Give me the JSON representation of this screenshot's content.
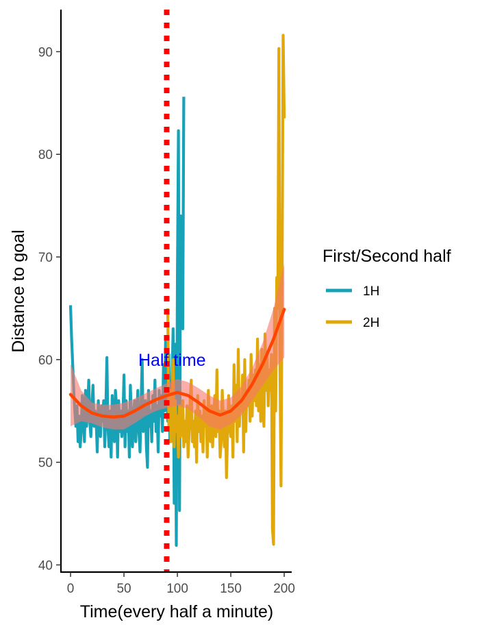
{
  "chart_data": {
    "type": "line",
    "title": "",
    "xlabel": "Time(every half a minute)",
    "ylabel": "Distance to goal",
    "xlim": [
      -9,
      207
    ],
    "ylim": [
      39.3,
      94.1
    ],
    "xticks": [
      0,
      50,
      100,
      150,
      200
    ],
    "yticks": [
      40,
      50,
      60,
      70,
      80,
      90
    ],
    "xtick_labels": [
      "0",
      "50",
      "100",
      "150",
      "200"
    ],
    "ytick_labels": [
      "40",
      "50",
      "60",
      "70",
      "80",
      "90"
    ],
    "grid": false,
    "legend": {
      "title": "First/Second half",
      "position": "right",
      "entries": [
        {
          "label": "1H",
          "color": "#17A2B8"
        },
        {
          "label": "2H",
          "color": "#E0A80A"
        }
      ]
    },
    "series": [
      {
        "name": "1H",
        "color": "#17A2B8",
        "x": [
          0,
          1,
          2,
          3,
          4,
          5,
          6,
          7,
          8,
          9,
          10,
          11,
          12,
          13,
          14,
          15,
          16,
          17,
          18,
          19,
          20,
          21,
          22,
          23,
          24,
          25,
          26,
          27,
          28,
          29,
          30,
          31,
          32,
          33,
          34,
          35,
          36,
          37,
          38,
          39,
          40,
          41,
          42,
          43,
          44,
          45,
          46,
          47,
          48,
          49,
          50,
          51,
          52,
          53,
          54,
          55,
          56,
          57,
          58,
          59,
          60,
          61,
          62,
          63,
          64,
          65,
          66,
          67,
          68,
          69,
          70,
          71,
          72,
          73,
          74,
          75,
          76,
          77,
          78,
          79,
          80,
          81,
          82,
          83,
          84,
          85,
          86,
          87,
          88,
          89,
          90,
          91,
          92,
          93,
          94,
          95,
          96,
          97,
          98,
          99,
          100,
          101,
          102,
          103,
          104,
          105,
          106
        ],
        "y": [
          65.3,
          62.0,
          59.5,
          57.0,
          55.0,
          53.5,
          55.5,
          52.0,
          54.5,
          51.5,
          53.0,
          56.5,
          54.5,
          52.0,
          57.0,
          53.5,
          55.0,
          58.0,
          54.0,
          52.5,
          55.5,
          57.5,
          53.5,
          55.0,
          54.0,
          51.0,
          56.0,
          53.0,
          52.5,
          55.5,
          54.0,
          56.0,
          51.5,
          55.0,
          60.2,
          53.5,
          51.5,
          55.0,
          50.5,
          56.5,
          54.0,
          52.0,
          57.0,
          55.5,
          50.5,
          56.0,
          53.0,
          55.0,
          52.5,
          54.5,
          58.5,
          51.5,
          56.0,
          53.0,
          55.0,
          50.5,
          57.5,
          54.0,
          51.5,
          55.0,
          56.0,
          52.0,
          54.5,
          57.0,
          53.0,
          51.0,
          55.5,
          60.0,
          53.0,
          54.5,
          56.0,
          51.5,
          49.5,
          57.0,
          53.5,
          55.0,
          52.0,
          56.5,
          54.0,
          58.0,
          53.0,
          55.5,
          51.0,
          57.0,
          54.5,
          56.5,
          53.0,
          59.5,
          55.0,
          62.0,
          57.0,
          54.0,
          60.5,
          52.0,
          56.5,
          58.0,
          63.0,
          46.0,
          61.5,
          41.9,
          68.0,
          82.3,
          45.3,
          74.0,
          70.0,
          63.0,
          85.6
        ]
      },
      {
        "name": "2H",
        "color": "#E0A80A",
        "x": [
          91,
          92,
          93,
          94,
          95,
          96,
          97,
          98,
          99,
          100,
          101,
          102,
          103,
          104,
          105,
          106,
          107,
          108,
          109,
          110,
          111,
          112,
          113,
          114,
          115,
          116,
          117,
          118,
          119,
          120,
          121,
          122,
          123,
          124,
          125,
          126,
          127,
          128,
          129,
          130,
          131,
          132,
          133,
          134,
          135,
          136,
          137,
          138,
          139,
          140,
          141,
          142,
          143,
          144,
          145,
          146,
          147,
          148,
          149,
          150,
          151,
          152,
          153,
          154,
          155,
          156,
          157,
          158,
          159,
          160,
          161,
          162,
          163,
          164,
          165,
          166,
          167,
          168,
          169,
          170,
          171,
          172,
          173,
          174,
          175,
          176,
          177,
          178,
          179,
          180,
          181,
          182,
          183,
          184,
          185,
          186,
          187,
          188,
          189,
          190,
          191,
          192,
          193,
          194,
          195,
          196,
          197,
          198,
          199,
          200
        ],
        "y": [
          65.0,
          53.5,
          57.0,
          52.0,
          55.0,
          60.0,
          51.5,
          56.0,
          53.0,
          54.5,
          50.5,
          55.5,
          52.5,
          54.0,
          56.0,
          51.5,
          54.0,
          52.0,
          55.5,
          50.5,
          53.0,
          56.0,
          58.0,
          52.0,
          54.0,
          51.5,
          55.0,
          50.0,
          56.5,
          53.0,
          55.0,
          52.0,
          54.5,
          51.0,
          56.0,
          53.5,
          55.0,
          50.5,
          57.0,
          54.0,
          52.0,
          55.5,
          51.5,
          54.5,
          56.5,
          52.5,
          59.0,
          53.0,
          55.0,
          50.5,
          52.0,
          57.0,
          54.0,
          51.5,
          55.0,
          48.5,
          53.0,
          56.5,
          54.0,
          52.5,
          55.5,
          50.5,
          59.5,
          54.0,
          57.5,
          52.0,
          61.0,
          53.5,
          56.0,
          55.0,
          58.5,
          51.0,
          60.0,
          53.0,
          57.0,
          55.5,
          58.0,
          54.0,
          60.5,
          54.5,
          58.5,
          56.0,
          59.0,
          55.5,
          62.0,
          55.0,
          59.5,
          54.0,
          61.0,
          56.0,
          53.5,
          62.5,
          57.0,
          60.5,
          55.5,
          59.0,
          57.0,
          60.5,
          43.5,
          42.0,
          65.0,
          55.0,
          68.0,
          65.0,
          90.3,
          60.0,
          47.7,
          68.0,
          91.6,
          83.5
        ]
      }
    ],
    "smooth": {
      "color": "#FF4500",
      "ribbon_color": "#F8766D",
      "x": [
        0,
        10,
        20,
        30,
        40,
        50,
        60,
        70,
        80,
        90,
        100,
        110,
        120,
        130,
        140,
        150,
        160,
        170,
        180,
        190,
        200
      ],
      "y": [
        56.6,
        55.5,
        54.8,
        54.5,
        54.4,
        54.5,
        55.0,
        55.6,
        56.1,
        56.5,
        56.8,
        56.5,
        55.8,
        55.0,
        54.6,
        55.0,
        56.0,
        57.6,
        59.6,
        62.0,
        64.9
      ],
      "lower": [
        53.5,
        54.0,
        53.8,
        53.4,
        53.2,
        53.2,
        53.8,
        54.5,
        55.0,
        55.3,
        55.5,
        55.2,
        54.4,
        53.5,
        53.2,
        53.7,
        54.6,
        56.0,
        57.5,
        59.0,
        60.2
      ],
      "upper": [
        59.6,
        57.0,
        55.8,
        55.6,
        55.6,
        55.8,
        56.2,
        56.7,
        57.2,
        57.7,
        58.1,
        57.8,
        57.2,
        56.5,
        56.0,
        56.3,
        57.4,
        59.2,
        61.7,
        65.0,
        69.3
      ]
    },
    "vline": {
      "x": 90,
      "color": "#FF0000",
      "style": "dotted"
    },
    "annotation": {
      "text": "Half time",
      "x": 95,
      "y": 60,
      "color": "#0000FF"
    }
  }
}
